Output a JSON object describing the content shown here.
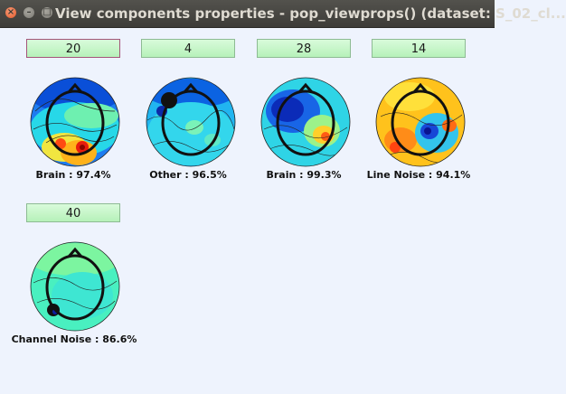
{
  "window": {
    "title": "View components properties - pop_viewprops() (dataset: S_02_cl..."
  },
  "components": [
    {
      "number": "20",
      "label": "Brain : 97.4%"
    },
    {
      "number": "4",
      "label": "Other : 96.5%"
    },
    {
      "number": "28",
      "label": "Brain : 99.3%"
    },
    {
      "number": "14",
      "label": "Line Noise : 94.1%"
    },
    {
      "number": "40",
      "label": "Channel Noise : 86.6%"
    }
  ]
}
